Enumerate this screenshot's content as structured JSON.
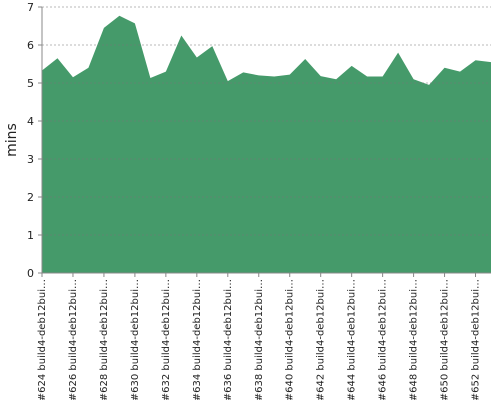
{
  "chart_data": {
    "type": "area",
    "y_label": "mins",
    "categories": [
      "#624 build4-deb12bui…",
      null,
      "#626 build4-deb12bui…",
      null,
      "#628 build4-deb12bui…",
      null,
      "#630 build4-deb12bui…",
      null,
      "#632 build4-deb12bui…",
      null,
      "#634 build4-deb12bui…",
      null,
      "#636 build4-deb12bui…",
      null,
      "#638 build4-deb12bui…",
      null,
      "#640 build4-deb12bui…",
      null,
      "#642 build4-deb12bui…",
      null,
      "#644 build4-deb12bui…",
      null,
      "#646 build4-deb12bui…",
      null,
      "#648 build4-deb12bui…",
      null,
      "#650 build4-deb12bui…",
      null,
      "#652 build4-deb12bui…",
      null
    ],
    "values": [
      5.33,
      5.65,
      5.15,
      5.4,
      6.45,
      6.77,
      6.57,
      5.13,
      5.3,
      6.25,
      5.67,
      5.97,
      5.05,
      5.28,
      5.2,
      5.17,
      5.22,
      5.63,
      5.18,
      5.1,
      5.45,
      5.17,
      5.17,
      5.8,
      5.1,
      4.95,
      5.4,
      5.3,
      5.6,
      5.55
    ],
    "color": "#459a6a",
    "ylim": [
      0,
      7
    ],
    "yticks": [
      0,
      1,
      2,
      3,
      4,
      5,
      6,
      7
    ],
    "grid": true
  }
}
